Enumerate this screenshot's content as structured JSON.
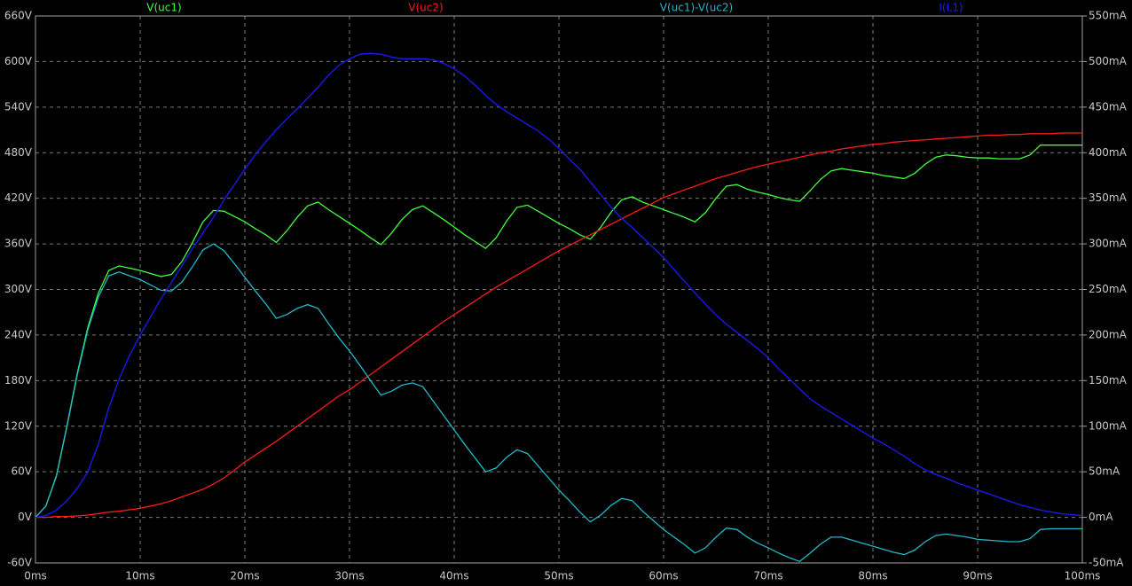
{
  "chart_data": {
    "type": "line",
    "x": [
      0,
      1,
      2,
      3,
      4,
      5,
      6,
      7,
      8,
      9,
      10,
      11,
      12,
      13,
      14,
      15,
      16,
      17,
      18,
      19,
      20,
      21,
      22,
      23,
      24,
      25,
      26,
      27,
      28,
      29,
      30,
      31,
      32,
      33,
      34,
      35,
      36,
      37,
      38,
      39,
      40,
      41,
      42,
      43,
      44,
      45,
      46,
      47,
      48,
      49,
      50,
      51,
      52,
      53,
      54,
      55,
      56,
      57,
      58,
      59,
      60,
      61,
      62,
      63,
      64,
      65,
      66,
      67,
      68,
      69,
      70,
      71,
      72,
      73,
      74,
      75,
      76,
      77,
      78,
      79,
      80,
      81,
      82,
      83,
      84,
      85,
      86,
      87,
      88,
      89,
      90,
      91,
      92,
      93,
      94,
      95,
      96,
      97,
      98,
      99,
      100
    ],
    "series": [
      {
        "name": "V(uc1)",
        "color": "#40ff40",
        "values": [
          0,
          15,
          55,
          120,
          190,
          250,
          295,
          325,
          331,
          328,
          325,
          321,
          317,
          320,
          337,
          362,
          389,
          404,
          403,
          396,
          389,
          380,
          372,
          362,
          377,
          395,
          410,
          415,
          405,
          396,
          387,
          378,
          368,
          359,
          374,
          392,
          405,
          410,
          401,
          392,
          382,
          372,
          363,
          354,
          368,
          390,
          408,
          411,
          403,
          395,
          387,
          380,
          372,
          366,
          382,
          402,
          418,
          422,
          415,
          410,
          405,
          400,
          395,
          389,
          401,
          420,
          436,
          438,
          432,
          428,
          425,
          421,
          418,
          416,
          430,
          445,
          456,
          459,
          457,
          455,
          453,
          450,
          448,
          446,
          453,
          465,
          474,
          477,
          476,
          474,
          473,
          473,
          472,
          472,
          472,
          477,
          490,
          490,
          490,
          490,
          490
        ]
      },
      {
        "name": "V(uc2)",
        "color": "#ff1a1a",
        "values": [
          0,
          0,
          1,
          1,
          2,
          3,
          5,
          7,
          8,
          10,
          12,
          15,
          18,
          22,
          27,
          32,
          37,
          44,
          52,
          62,
          73,
          82,
          91,
          100,
          110,
          120,
          130,
          140,
          150,
          160,
          168,
          178,
          188,
          198,
          208,
          218,
          228,
          238,
          248,
          258,
          267,
          276,
          285,
          294,
          303,
          311,
          319,
          327,
          335,
          343,
          351,
          358,
          365,
          372,
          379,
          386,
          393,
          400,
          407,
          414,
          421,
          426,
          431,
          436,
          441,
          446,
          450,
          454,
          458,
          462,
          465,
          468,
          471,
          474,
          477,
          480,
          482,
          485,
          487,
          489,
          491,
          492,
          494,
          495,
          496,
          497,
          498,
          499,
          500,
          501,
          502,
          503,
          503,
          504,
          504,
          505,
          505,
          505,
          506,
          506,
          506
        ]
      },
      {
        "name": "V(uc1)-V(uc2)",
        "color": "#22b8c8",
        "values": [
          0,
          15,
          54,
          119,
          188,
          247,
          290,
          318,
          323,
          318,
          313,
          306,
          299,
          298,
          310,
          330,
          352,
          360,
          351,
          334,
          316,
          298,
          281,
          262,
          267,
          275,
          280,
          275,
          255,
          236,
          219,
          200,
          180,
          161,
          166,
          174,
          177,
          172,
          153,
          134,
          115,
          96,
          78,
          60,
          65,
          79,
          89,
          84,
          68,
          52,
          36,
          22,
          7,
          -6,
          3,
          16,
          25,
          22,
          8,
          -4,
          -16,
          -26,
          -36,
          -47,
          -40,
          -26,
          -14,
          -16,
          -26,
          -34,
          -40,
          -47,
          -53,
          -58,
          -47,
          -35,
          -26,
          -26,
          -30,
          -34,
          -38,
          -42,
          -46,
          -49,
          -43,
          -32,
          -24,
          -22,
          -24,
          -26,
          -29,
          -30,
          -31,
          -32,
          -32,
          -28,
          -16,
          -15,
          -15,
          -15,
          -15
        ]
      },
      {
        "name": "I(L1)",
        "color": "#1a1aff",
        "axis": "y2",
        "values": [
          0,
          2,
          8,
          18,
          32,
          50,
          80,
          120,
          152,
          178,
          200,
          220,
          240,
          258,
          276,
          295,
          312,
          329,
          348,
          365,
          382,
          398,
          412,
          425,
          437,
          448,
          460,
          472,
          485,
          496,
          503,
          508,
          509,
          508,
          505,
          503,
          503,
          503,
          502,
          498,
          492,
          484,
          474,
          463,
          453,
          445,
          438,
          431,
          424,
          415,
          405,
          393,
          382,
          368,
          354,
          340,
          328,
          318,
          307,
          296,
          285,
          272,
          259,
          246,
          234,
          222,
          212,
          203,
          194,
          185,
          175,
          163,
          152,
          141,
          130,
          122,
          115,
          108,
          101,
          94,
          87,
          81,
          74,
          67,
          59,
          52,
          47,
          43,
          38,
          34,
          30,
          26,
          22,
          18,
          14,
          11,
          8,
          6,
          4,
          3,
          2
        ]
      }
    ],
    "xlim": [
      0,
      100
    ],
    "xticks": [
      {
        "value": 0,
        "label": "0ms"
      },
      {
        "value": 10,
        "label": "10ms"
      },
      {
        "value": 20,
        "label": "20ms"
      },
      {
        "value": 30,
        "label": "30ms"
      },
      {
        "value": 40,
        "label": "40ms"
      },
      {
        "value": 50,
        "label": "50ms"
      },
      {
        "value": 60,
        "label": "60ms"
      },
      {
        "value": 70,
        "label": "70ms"
      },
      {
        "value": 80,
        "label": "80ms"
      },
      {
        "value": 90,
        "label": "90ms"
      },
      {
        "value": 100,
        "label": "100ms"
      }
    ],
    "ylim": [
      -60,
      660
    ],
    "yticks": [
      {
        "value": -60,
        "label": "-60V"
      },
      {
        "value": 0,
        "label": "0V"
      },
      {
        "value": 60,
        "label": "60V"
      },
      {
        "value": 120,
        "label": "120V"
      },
      {
        "value": 180,
        "label": "180V"
      },
      {
        "value": 240,
        "label": "240V"
      },
      {
        "value": 300,
        "label": "300V"
      },
      {
        "value": 360,
        "label": "360V"
      },
      {
        "value": 420,
        "label": "420V"
      },
      {
        "value": 480,
        "label": "480V"
      },
      {
        "value": 540,
        "label": "540V"
      },
      {
        "value": 600,
        "label": "600V"
      },
      {
        "value": 660,
        "label": "660V"
      }
    ],
    "y2lim": [
      -50,
      550
    ],
    "y2ticks": [
      {
        "value": -50,
        "label": "-50mA"
      },
      {
        "value": 0,
        "label": "0mA"
      },
      {
        "value": 50,
        "label": "50mA"
      },
      {
        "value": 100,
        "label": "100mA"
      },
      {
        "value": 150,
        "label": "150mA"
      },
      {
        "value": 200,
        "label": "200mA"
      },
      {
        "value": 250,
        "label": "250mA"
      },
      {
        "value": 300,
        "label": "300mA"
      },
      {
        "value": 350,
        "label": "350mA"
      },
      {
        "value": 400,
        "label": "400mA"
      },
      {
        "value": 450,
        "label": "450mA"
      },
      {
        "value": 500,
        "label": "500mA"
      },
      {
        "value": 550,
        "label": "550mA"
      }
    ],
    "grid": true
  }
}
